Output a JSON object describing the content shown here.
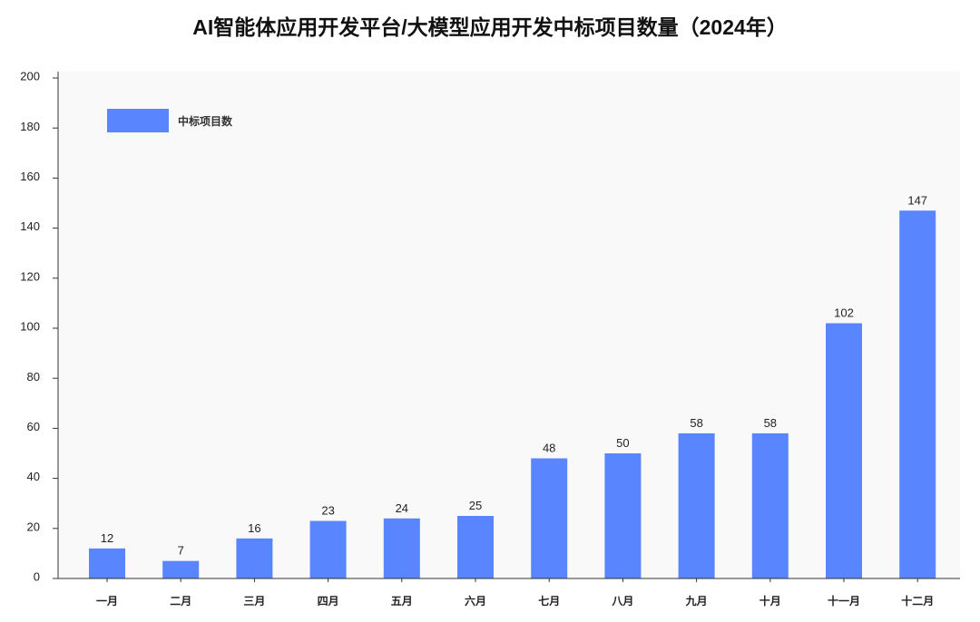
{
  "colors": {
    "plot_background": "#f9f9f9",
    "axis": "#333333",
    "text": "#222222"
  },
  "chart_data": {
    "type": "bar",
    "title": "AI智能体应用开发平台/大模型应用开发中标项目数量（2024年）",
    "categories": [
      "一月",
      "二月",
      "三月",
      "四月",
      "五月",
      "六月",
      "七月",
      "八月",
      "九月",
      "十月",
      "十一月",
      "十二月"
    ],
    "series": [
      {
        "name": "中标项目数",
        "values": [
          12,
          7,
          16,
          23,
          24,
          25,
          48,
          50,
          58,
          58,
          102,
          147
        ],
        "color": "#5986ff"
      }
    ],
    "ylim": [
      0,
      200
    ],
    "yticks": [
      0,
      20,
      40,
      60,
      80,
      100,
      120,
      140,
      160,
      180,
      200
    ],
    "grid": false,
    "legend": "top-left",
    "data_labels": true
  }
}
